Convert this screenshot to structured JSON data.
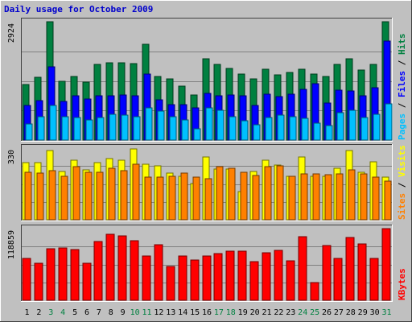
{
  "chart_data": {
    "type": "bar",
    "title": "Daily usage for October 2009",
    "days": [
      "1",
      "2",
      "3",
      "4",
      "5",
      "6",
      "7",
      "8",
      "9",
      "10",
      "11",
      "12",
      "13",
      "14",
      "15",
      "16",
      "17",
      "18",
      "19",
      "20",
      "21",
      "22",
      "23",
      "24",
      "25",
      "26",
      "27",
      "28",
      "29",
      "30",
      "31"
    ],
    "weekend_days": [
      "3",
      "4",
      "10",
      "11",
      "17",
      "18",
      "24",
      "25",
      "31"
    ],
    "panels": [
      {
        "id": "hits",
        "ymax_label": "2924",
        "ymax": 2924,
        "series": [
          {
            "name": "Hits",
            "color": "#008040",
            "values": [
              1370,
              1560,
              2924,
              1460,
              1570,
              1430,
              1860,
              1900,
              1910,
              1880,
              2370,
              1580,
              1510,
              1330,
              1110,
              2010,
              1870,
              1780,
              1640,
              1510,
              1750,
              1610,
              1670,
              1750,
              1630,
              1570,
              1870,
              2010,
              1730,
              1860,
              2924
            ]
          },
          {
            "name": "Files",
            "color": "#0000ff",
            "values": [
              860,
              970,
              1820,
              960,
              1090,
              1010,
              1090,
              1100,
              1110,
              1100,
              1630,
              1000,
              880,
              880,
              800,
              1160,
              1100,
              1120,
              1100,
              860,
              1140,
              1080,
              1140,
              1250,
              1390,
              910,
              1240,
              1220,
              1100,
              1290,
              2440
            ]
          },
          {
            "name": "Pages",
            "color": "#00c0ff",
            "values": [
              400,
              570,
              860,
              580,
              550,
              500,
              560,
              640,
              610,
              580,
              790,
              710,
              580,
              500,
              280,
              790,
              740,
              570,
              470,
              370,
              550,
              610,
              570,
              530,
              420,
              360,
              670,
              730,
              550,
              630,
              890
            ]
          }
        ]
      },
      {
        "id": "visits",
        "ymax_label": "330",
        "ymax": 330,
        "series": [
          {
            "name": "Visits",
            "color": "#ffff00",
            "values": [
              262,
              264,
              320,
              221,
              274,
              231,
              262,
              281,
              275,
              327,
              257,
              247,
              214,
              200,
              166,
              290,
              233,
              232,
              130,
              221,
              274,
              251,
              200,
              291,
              202,
              202,
              238,
              320,
              220,
              267,
              197
            ]
          },
          {
            "name": "Sites",
            "color": "#ff8000",
            "values": [
              218,
              216,
              226,
              201,
              246,
              219,
              220,
              239,
              228,
              257,
              197,
              197,
              202,
              214,
              196,
              188,
              245,
              238,
              220,
              205,
              245,
              248,
              199,
              211,
              210,
              207,
              210,
              231,
              210,
              197,
              177
            ]
          }
        ]
      },
      {
        "id": "kbytes",
        "ymax_label": "118859",
        "ymax": 118859,
        "series": [
          {
            "name": "KBytes",
            "color": "#ff0000",
            "values": [
              70000,
              61000,
              86000,
              87000,
              84000,
              62000,
              98000,
              109000,
              107000,
              99000,
              73000,
              92000,
              56000,
              73000,
              67000,
              73000,
              78000,
              82000,
              82000,
              64000,
              79000,
              83000,
              66000,
              105000,
              30000,
              91000,
              69000,
              104000,
              94000,
              70000,
              118859
            ]
          }
        ]
      }
    ],
    "side_labels": {
      "hits": [
        {
          "text": "Pages",
          "color": "#00c0ff"
        },
        {
          "text": " / ",
          "color": "#000000"
        },
        {
          "text": "Files",
          "color": "#0000ff"
        },
        {
          "text": " / ",
          "color": "#000000"
        },
        {
          "text": "Hits",
          "color": "#008040"
        }
      ],
      "visits": [
        {
          "text": "Sites",
          "color": "#ff8000"
        },
        {
          "text": " / ",
          "color": "#000000"
        },
        {
          "text": "Visits",
          "color": "#ffff00"
        }
      ],
      "kbytes": [
        {
          "text": "KBytes",
          "color": "#ff0000"
        }
      ]
    },
    "colors": {
      "background": "#c0c0c0",
      "title": "#0000cc",
      "grid": "#808080",
      "weekday_label": "#000000",
      "weekend_label": "#008040"
    },
    "grid": true,
    "legend": "right-vertical"
  }
}
